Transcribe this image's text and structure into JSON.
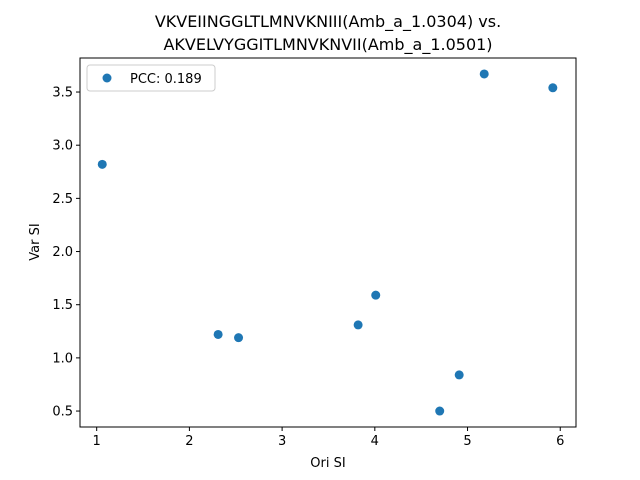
{
  "chart_data": {
    "type": "scatter",
    "title_lines": [
      "VKVEIINGGLTLMNVKNIII(Amb_a_1.0304) vs.",
      "AKVELVYGGITLMNVKNVII(Amb_a_1.0501)"
    ],
    "xlabel": "Ori SI",
    "ylabel": "Var SI",
    "xlim": [
      0.82,
      6.17
    ],
    "ylim": [
      0.35,
      3.82
    ],
    "xticks": [
      1,
      2,
      3,
      4,
      5,
      6
    ],
    "xtick_labels": [
      "1",
      "2",
      "3",
      "4",
      "5",
      "6"
    ],
    "yticks": [
      0.5,
      1.0,
      1.5,
      2.0,
      2.5,
      3.0,
      3.5
    ],
    "ytick_labels": [
      "0.5",
      "1.0",
      "1.5",
      "2.0",
      "2.5",
      "3.0",
      "3.5"
    ],
    "grid": false,
    "legend": {
      "position": "top-left",
      "label": "PCC: 0.189"
    },
    "series": [
      {
        "name": "PCC: 0.189",
        "color": "#1f77b4",
        "points": [
          {
            "x": 1.06,
            "y": 2.82
          },
          {
            "x": 2.31,
            "y": 1.22
          },
          {
            "x": 2.53,
            "y": 1.19
          },
          {
            "x": 3.82,
            "y": 1.31
          },
          {
            "x": 4.01,
            "y": 1.59
          },
          {
            "x": 4.7,
            "y": 0.5
          },
          {
            "x": 4.91,
            "y": 0.84
          },
          {
            "x": 5.18,
            "y": 3.67
          },
          {
            "x": 5.92,
            "y": 3.54
          }
        ]
      }
    ]
  }
}
